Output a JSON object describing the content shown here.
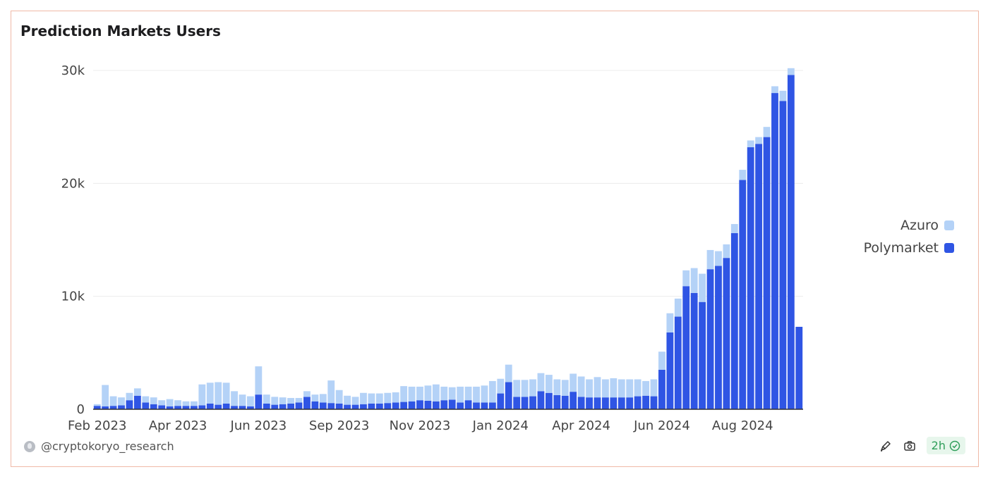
{
  "header": {
    "title": "Prediction Markets Users"
  },
  "author": {
    "name": "@cryptokoryo_research",
    "icon": "avatar-icon"
  },
  "toolbar": {
    "badge_label": "2h",
    "icons": [
      "edit-icon",
      "camera-icon",
      "check-circle-icon"
    ]
  },
  "colors": {
    "azuro": "#b4d2f7",
    "polymarket": "#2f55e4",
    "grid": "#ececec",
    "axis": "#333333"
  },
  "chart_data": {
    "type": "bar",
    "stacked": true,
    "title": "Prediction Markets Users",
    "xlabel": "",
    "ylabel": "",
    "ylim": [
      0,
      30000
    ],
    "yticks": [
      0,
      10000,
      20000,
      30000
    ],
    "ytick_labels": [
      "0",
      "10k",
      "20k",
      "30k"
    ],
    "xticks": [
      {
        "index": 0,
        "label": "Feb 2023"
      },
      {
        "index": 10,
        "label": "Apr 2023"
      },
      {
        "index": 20,
        "label": "Jun 2023"
      },
      {
        "index": 30,
        "label": "Sep 2023"
      },
      {
        "index": 40,
        "label": "Nov 2023"
      },
      {
        "index": 50,
        "label": "Jan 2024"
      },
      {
        "index": 60,
        "label": "Apr 2024"
      },
      {
        "index": 70,
        "label": "Jun 2024"
      },
      {
        "index": 80,
        "label": "Aug 2024"
      }
    ],
    "legend_position": "right",
    "series": [
      {
        "name": "Polymarket",
        "values": [
          300,
          250,
          300,
          350,
          800,
          1200,
          600,
          450,
          350,
          250,
          300,
          300,
          300,
          350,
          500,
          400,
          500,
          300,
          300,
          250,
          1300,
          500,
          400,
          450,
          500,
          600,
          1100,
          700,
          600,
          550,
          500,
          400,
          400,
          450,
          500,
          500,
          550,
          600,
          650,
          700,
          800,
          750,
          700,
          800,
          850,
          600,
          800,
          600,
          600,
          600,
          1400,
          2400,
          1100,
          1100,
          1150,
          1600,
          1450,
          1250,
          1200,
          1550,
          1100,
          1050,
          1050,
          1050,
          1050,
          1050,
          1050,
          1150,
          1200,
          1150,
          3500,
          6800,
          8200,
          10900,
          10300,
          9500,
          12400,
          12700,
          13400,
          15600,
          20300,
          23200,
          23500,
          24100,
          28000,
          27300,
          29600,
          7300
        ]
      },
      {
        "name": "Azuro",
        "values": [
          150,
          1900,
          850,
          700,
          650,
          650,
          550,
          600,
          450,
          650,
          500,
          400,
          400,
          1850,
          1850,
          2000,
          1850,
          1300,
          1000,
          900,
          2500,
          800,
          700,
          600,
          500,
          400,
          500,
          600,
          750,
          2000,
          1200,
          800,
          700,
          1000,
          900,
          900,
          900,
          900,
          1400,
          1300,
          1200,
          1350,
          1500,
          1200,
          1100,
          1400,
          1200,
          1400,
          1500,
          1900,
          1300,
          1550,
          1500,
          1500,
          1500,
          1600,
          1600,
          1400,
          1400,
          1600,
          1800,
          1600,
          1800,
          1600,
          1700,
          1600,
          1600,
          1500,
          1300,
          1500,
          1600,
          1700,
          1600,
          1400,
          2200,
          2500,
          1700,
          1300,
          1200,
          800,
          900,
          600,
          600,
          900,
          600,
          900,
          600,
          0
        ]
      }
    ]
  }
}
